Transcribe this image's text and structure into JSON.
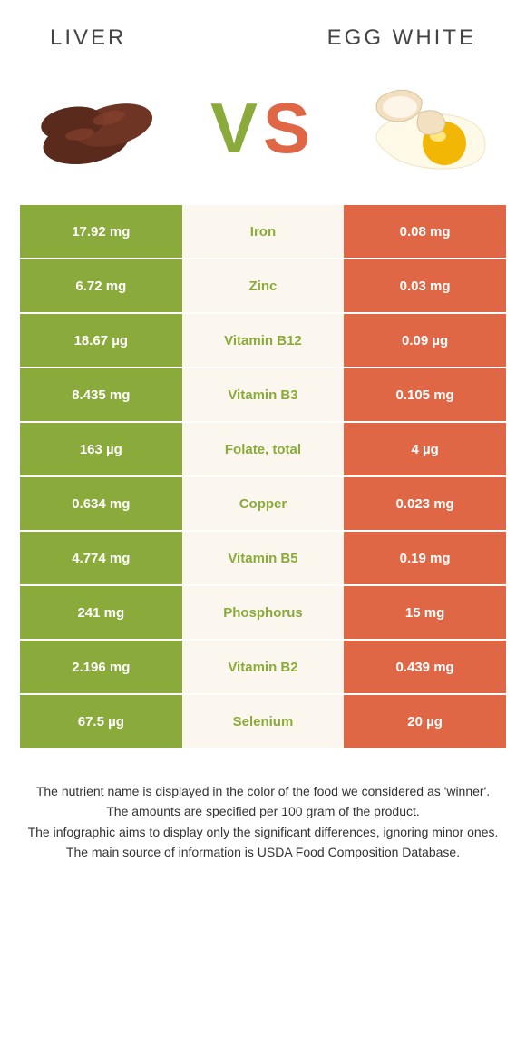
{
  "header": {
    "left_title": "Liver",
    "right_title": "Egg white"
  },
  "vs": {
    "v": "V",
    "s": "S"
  },
  "colors": {
    "left_bg": "#8aaa3b",
    "right_bg": "#e06745",
    "mid_bg": "#fbf7ee",
    "left_text": "#8aaa3b",
    "right_text": "#e06745"
  },
  "rows": [
    {
      "nutrient": "Iron",
      "left": "17.92 mg",
      "right": "0.08 mg",
      "winner": "left"
    },
    {
      "nutrient": "Zinc",
      "left": "6.72 mg",
      "right": "0.03 mg",
      "winner": "left"
    },
    {
      "nutrient": "Vitamin B12",
      "left": "18.67 µg",
      "right": "0.09 µg",
      "winner": "left"
    },
    {
      "nutrient": "Vitamin B3",
      "left": "8.435 mg",
      "right": "0.105 mg",
      "winner": "left"
    },
    {
      "nutrient": "Folate, total",
      "left": "163 µg",
      "right": "4 µg",
      "winner": "left"
    },
    {
      "nutrient": "Copper",
      "left": "0.634 mg",
      "right": "0.023 mg",
      "winner": "left"
    },
    {
      "nutrient": "Vitamin B5",
      "left": "4.774 mg",
      "right": "0.19 mg",
      "winner": "left"
    },
    {
      "nutrient": "Phosphorus",
      "left": "241 mg",
      "right": "15 mg",
      "winner": "left"
    },
    {
      "nutrient": "Vitamin B2",
      "left": "2.196 mg",
      "right": "0.439 mg",
      "winner": "left"
    },
    {
      "nutrient": "Selenium",
      "left": "67.5 µg",
      "right": "20 µg",
      "winner": "left"
    }
  ],
  "footer": {
    "line1": "The nutrient name is displayed in the color of the food we considered as 'winner'.",
    "line2": "The amounts are specified per 100 gram of the product.",
    "line3": "The infographic aims to display only the significant differences, ignoring minor ones.",
    "line4": "The main source of information is USDA Food Composition Database."
  }
}
